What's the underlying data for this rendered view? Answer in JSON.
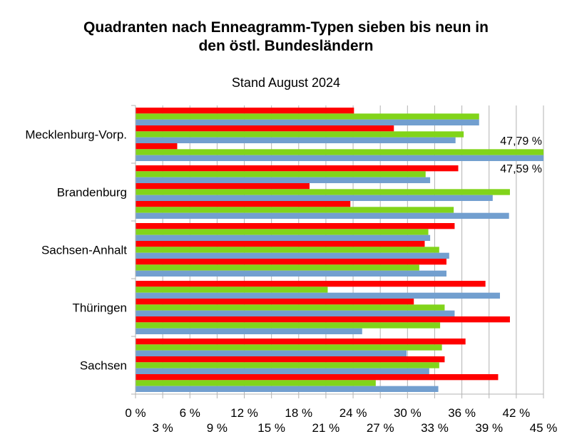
{
  "chart_data": {
    "type": "bar",
    "orientation": "horizontal",
    "title_line1": "Quadranten nach Enneagramm-Typen sieben bis neun in",
    "title_line2": "den östl. Bundesländern",
    "subtitle": "Stand August 2024",
    "categories": [
      "Mecklenburg-Vorp.",
      "Brandenburg",
      "Sachsen-Anhalt",
      "Thüringen",
      "Sachsen"
    ],
    "xlim": [
      0,
      45
    ],
    "ticks_upper": [
      "0 %",
      "6 %",
      "12 %",
      "18 %",
      "24 %",
      "30 %",
      "36 %",
      "42 %"
    ],
    "ticks_lower": [
      "3 %",
      "9 %",
      "15 %",
      "21 %",
      "27 %",
      "33 %",
      "39 %",
      "45 %"
    ],
    "gridlines": true,
    "annotations": [
      "47,79 %",
      "47,59 %"
    ],
    "colors": [
      "#ff0000",
      "#81d41a",
      "#729fcf"
    ],
    "values": [
      [
        24.1,
        37.9,
        37.9,
        28.5,
        36.2,
        35.3,
        4.6,
        47.79,
        47.59
      ],
      [
        35.6,
        32.0,
        32.5,
        19.2,
        41.3,
        39.4,
        23.7,
        35.1,
        41.2
      ],
      [
        35.2,
        32.3,
        32.5,
        31.9,
        33.5,
        34.6,
        34.3,
        31.3,
        34.3
      ],
      [
        38.6,
        21.2,
        40.2,
        30.7,
        34.1,
        35.2,
        41.3,
        33.6,
        25.0
      ],
      [
        36.4,
        33.8,
        29.9,
        34.1,
        33.5,
        32.4,
        40.0,
        26.5,
        33.4
      ]
    ]
  }
}
